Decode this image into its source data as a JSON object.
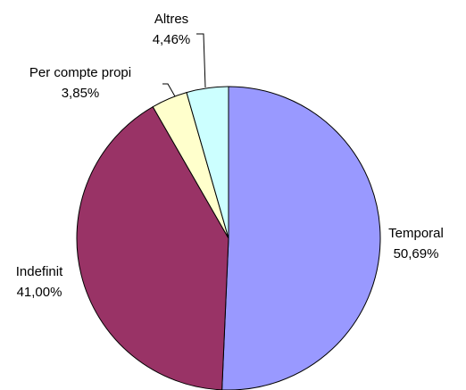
{
  "chart_data": {
    "type": "pie",
    "categories": [
      "Temporal",
      "Indefinit",
      "Per compte propi",
      "Altres"
    ],
    "values": [
      50.69,
      41.0,
      3.85,
      4.46
    ],
    "value_labels": [
      "50,69%",
      "41,00%",
      "3,85%",
      "4,46%"
    ],
    "colors": [
      "#9999ff",
      "#993366",
      "#ffffcc",
      "#ccffff"
    ]
  }
}
